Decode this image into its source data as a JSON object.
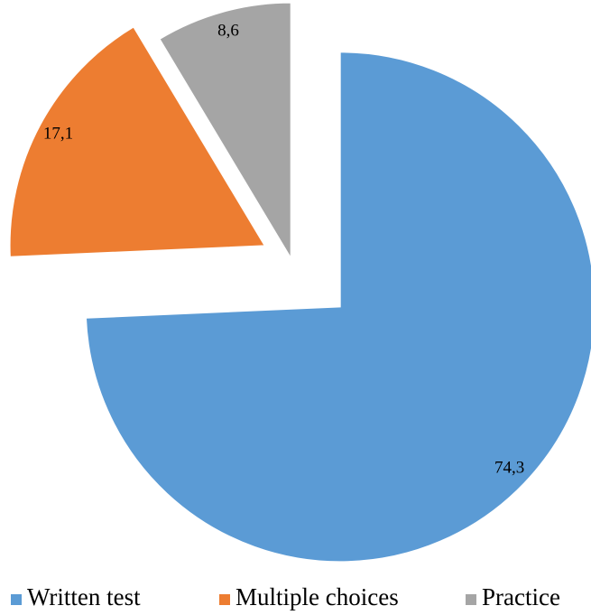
{
  "chart_data": {
    "type": "pie",
    "categories": [
      "Written test",
      "Multiple choices",
      "Practice"
    ],
    "values": [
      74.3,
      17.1,
      8.6
    ],
    "value_labels": [
      "74,3",
      "17,1",
      "8,6"
    ],
    "colors": [
      "#5b9bd5",
      "#ed7d31",
      "#a5a5a5"
    ]
  }
}
